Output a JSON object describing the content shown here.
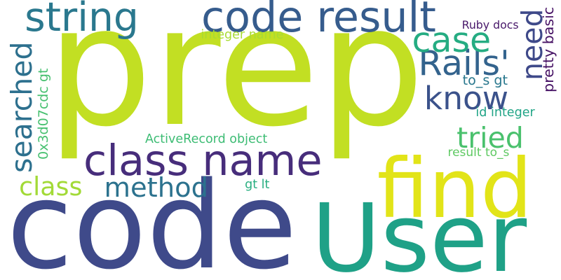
{
  "words": [
    {
      "id": "prep",
      "text": "prep",
      "color": "#c2df23",
      "rotated": false
    },
    {
      "id": "code-large",
      "text": "code",
      "color": "#3f4a8a",
      "rotated": false
    },
    {
      "id": "user",
      "text": "User",
      "color": "#1fa187",
      "rotated": false
    },
    {
      "id": "find",
      "text": "find",
      "color": "#e2e418",
      "rotated": false
    },
    {
      "id": "string",
      "text": "string",
      "color": "#2a788e",
      "rotated": false
    },
    {
      "id": "code-result",
      "text": "code result",
      "color": "#365c8d",
      "rotated": false
    },
    {
      "id": "class-name",
      "text": "class name",
      "color": "#472d7b",
      "rotated": false
    },
    {
      "id": "rails",
      "text": "Rails'",
      "color": "#33638d",
      "rotated": false
    },
    {
      "id": "know",
      "text": "know",
      "color": "#3b528b",
      "rotated": false
    },
    {
      "id": "case",
      "text": "case",
      "color": "#25ac82",
      "rotated": false
    },
    {
      "id": "tried",
      "text": "tried",
      "color": "#4ac16d",
      "rotated": false
    },
    {
      "id": "method",
      "text": "method",
      "color": "#2c728e",
      "rotated": false
    },
    {
      "id": "class",
      "text": "class",
      "color": "#a2da37",
      "rotated": false
    },
    {
      "id": "searched",
      "text": "searched",
      "color": "#2d708e",
      "rotated": true
    },
    {
      "id": "need",
      "text": "need",
      "color": "#3e4989",
      "rotated": true
    },
    {
      "id": "pretty-basic",
      "text": "pretty basic",
      "color": "#471365",
      "rotated": true
    },
    {
      "id": "hexid-gt",
      "text": "0x3d07cdc gt",
      "color": "#46c06f",
      "rotated": true
    },
    {
      "id": "integer-name",
      "text": "integer name",
      "color": "#a8db34",
      "rotated": false
    },
    {
      "id": "ruby-docs",
      "text": "Ruby docs",
      "color": "#48186a",
      "rotated": false
    },
    {
      "id": "to-s-gt",
      "text": "to_s gt",
      "color": "#2a788e",
      "rotated": false
    },
    {
      "id": "id-integer",
      "text": "id integer",
      "color": "#20a486",
      "rotated": false
    },
    {
      "id": "activerecord-object",
      "text": "ActiveRecord object",
      "color": "#3dbc74",
      "rotated": false
    },
    {
      "id": "result-to-s",
      "text": "result to_s",
      "color": "#5ec962",
      "rotated": false
    },
    {
      "id": "gt-lt",
      "text": "gt lt",
      "color": "#28ae80",
      "rotated": false
    }
  ]
}
